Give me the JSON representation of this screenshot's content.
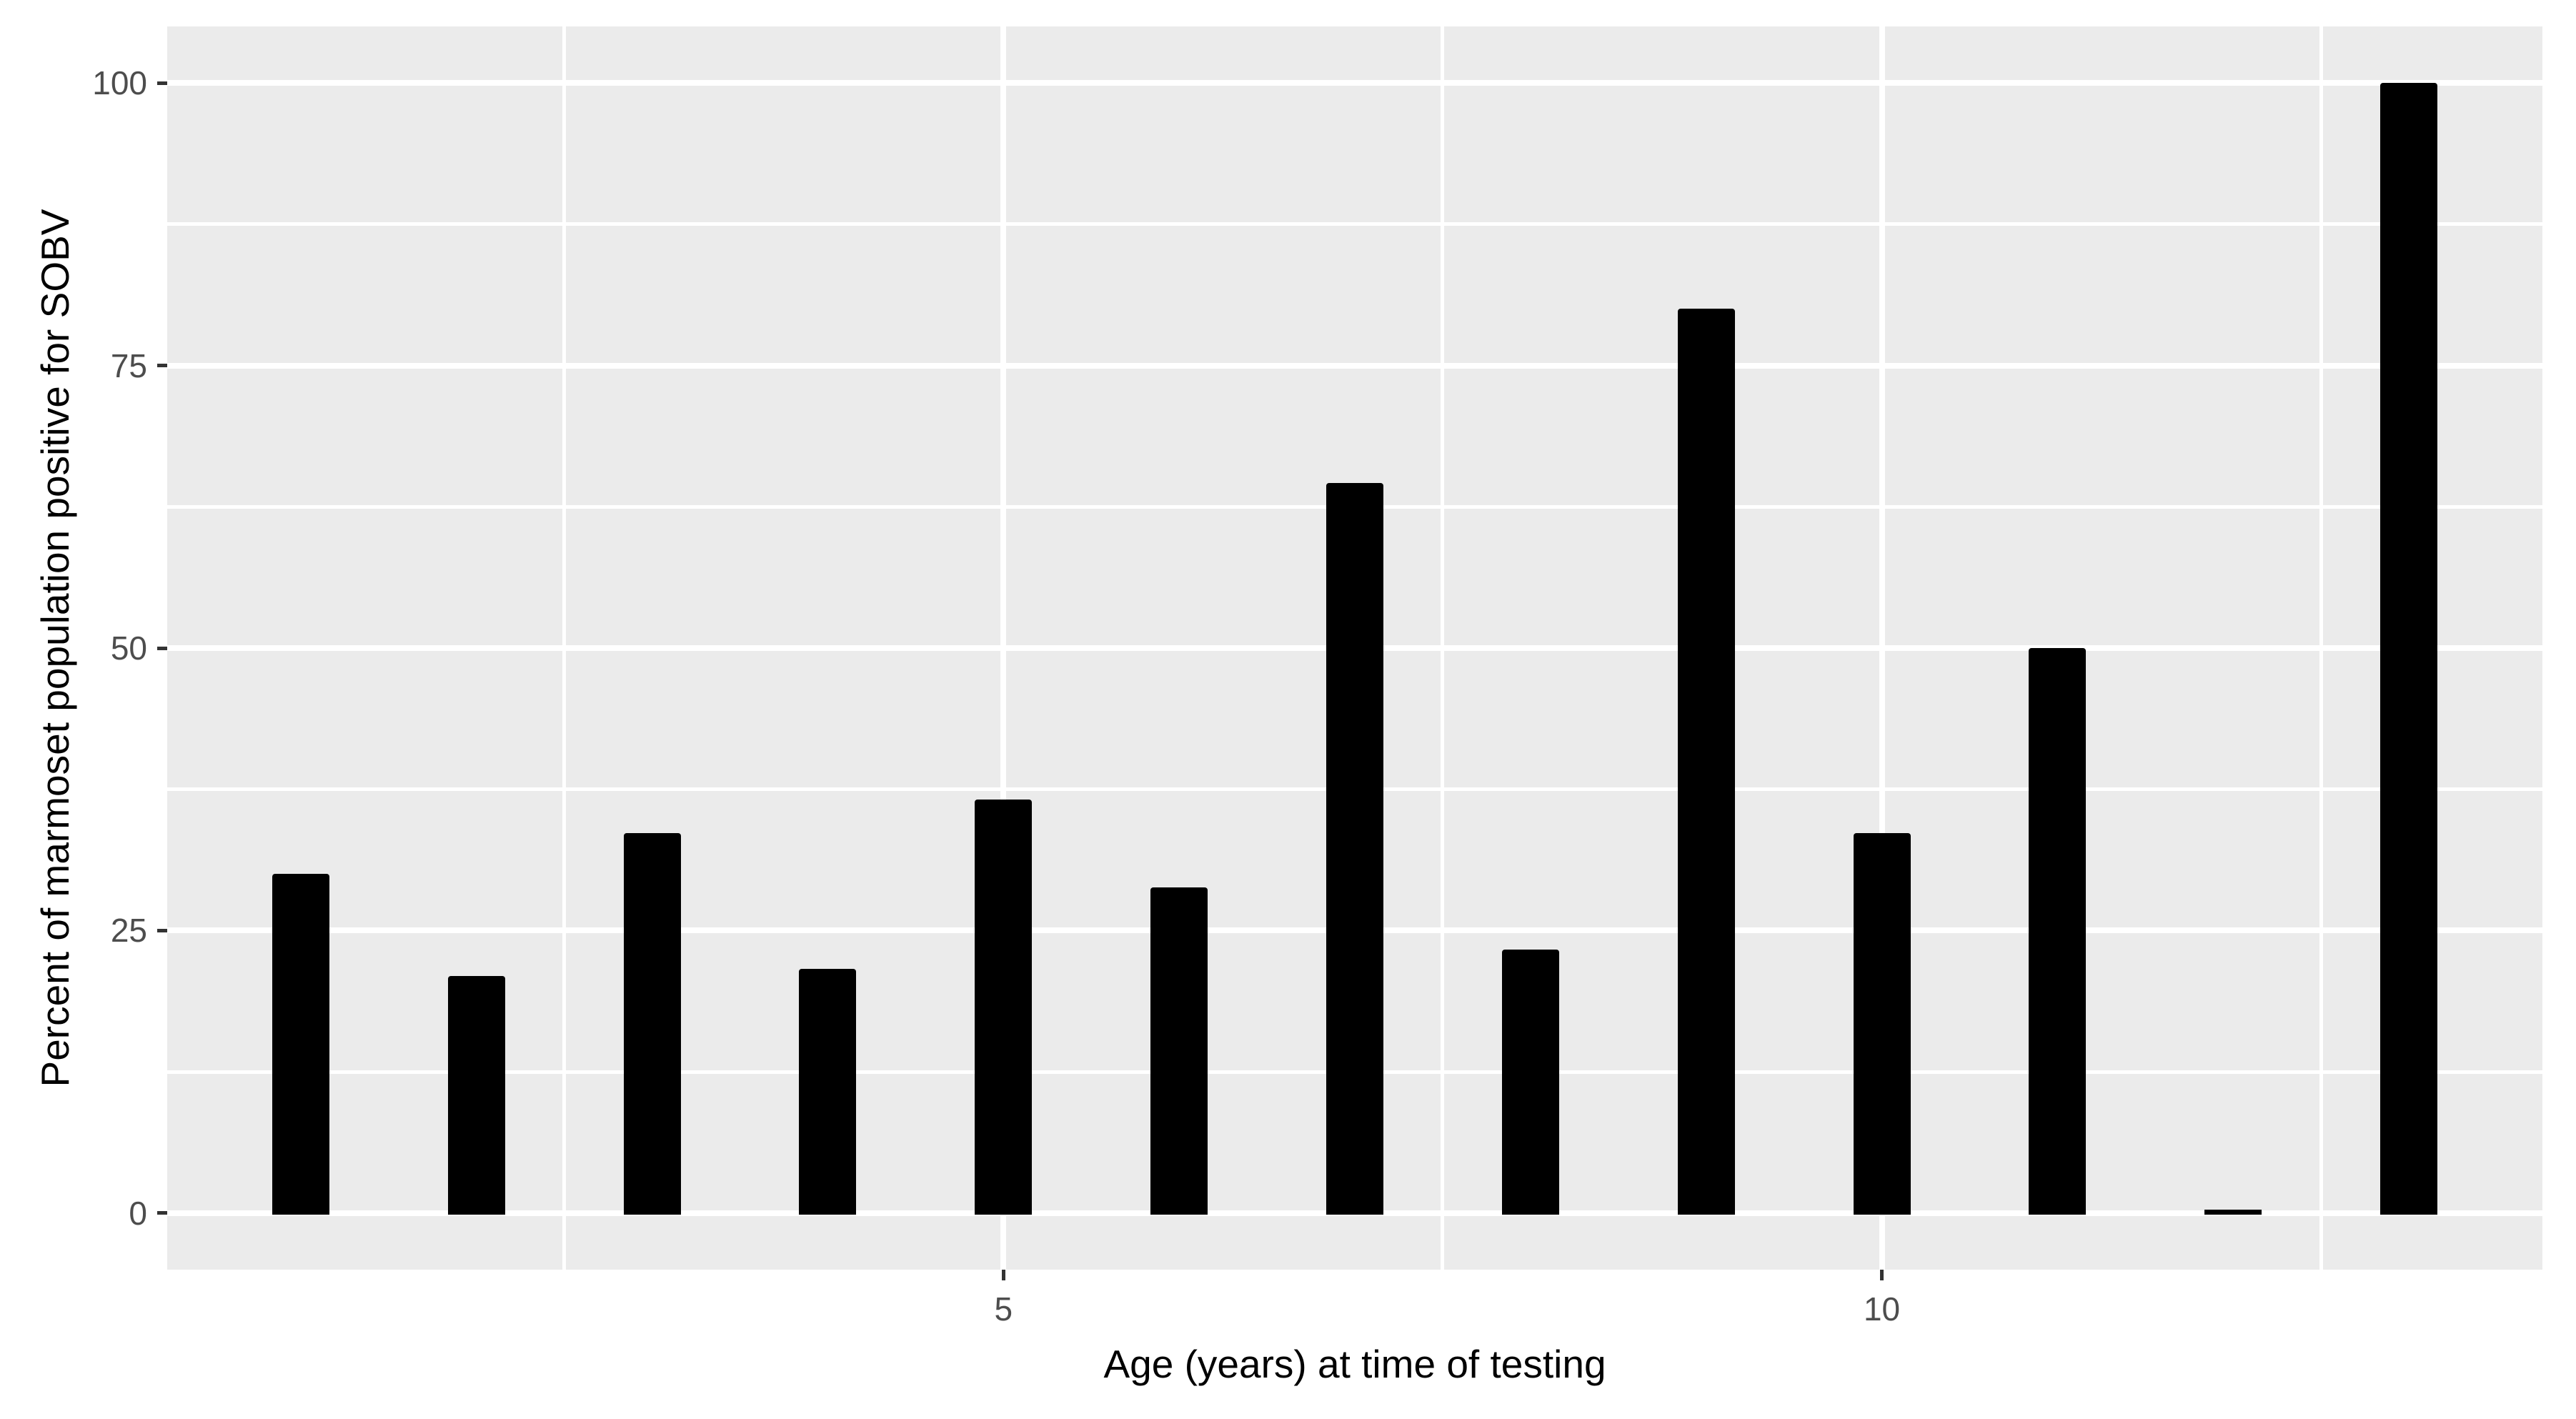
{
  "figure": {
    "background_color": "#FFFFFF",
    "panel_background_color": "#EBEBEB",
    "gridline_color": "#FFFFFF",
    "bar_color": "#000000",
    "tick_mark_color": "#333333",
    "tick_label_color": "#4D4D4D",
    "axis_title_color": "#000000"
  },
  "chart_data": {
    "type": "bar",
    "title": "",
    "xlabel": "Age (years) at time of testing",
    "ylabel": "Percent of marmoset population positive for SOBV",
    "x": [
      1,
      2,
      3,
      4,
      5,
      6,
      7,
      8,
      9,
      10,
      11,
      12,
      13
    ],
    "values": [
      30,
      21,
      33.6,
      21.6,
      36.6,
      28.8,
      64.6,
      23.3,
      80,
      33.6,
      50,
      0,
      100
    ],
    "bar_width": 0.325,
    "xlim": [
      0.24,
      13.76
    ],
    "ylim": [
      -5,
      105
    ],
    "x_major_ticks": [
      5,
      10
    ],
    "x_tick_labels": [
      "5",
      "10"
    ],
    "x_minor_gridlines": [
      2.5,
      7.5,
      12.5
    ],
    "y_major_ticks": [
      0,
      25,
      50,
      75,
      100
    ],
    "y_tick_labels": [
      "0",
      "25",
      "50",
      "75",
      "100"
    ],
    "y_minor_gridlines": [
      12.5,
      37.5,
      62.5,
      87.5
    ],
    "grid": "major+minor white on grey panel",
    "legend": "none"
  }
}
